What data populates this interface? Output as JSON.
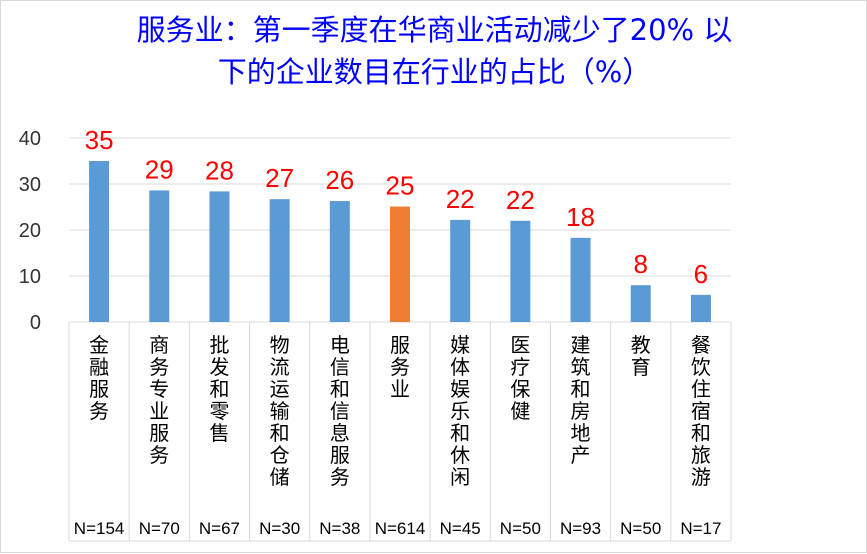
{
  "chart_data": {
    "type": "bar",
    "title_line1": "服务业：第一季度在华商业活动减少了20% 以",
    "title_line2": "下的企业数目在行业的占比（%）",
    "categories": [
      "金融服务",
      "商务专业服务",
      "批发和零售",
      "物流运输和仓储",
      "电信和信息服务",
      "服务业",
      "媒体娱乐和休闲",
      "医疗保健",
      "建筑和房地产",
      "教育",
      "餐饮住宿和旅游"
    ],
    "n_labels": [
      "N=154",
      "N=70",
      "N=67",
      "N=30",
      "N=38",
      "N=614",
      "N=45",
      "N=50",
      "N=93",
      "N=50",
      "N=17"
    ],
    "values": [
      35,
      28.6,
      28.4,
      26.7,
      26.3,
      25.1,
      22.2,
      22,
      18.3,
      8,
      5.9
    ],
    "data_labels": [
      "35",
      "29",
      "28",
      "27",
      "26",
      "25",
      "22",
      "22",
      "18",
      "8",
      "6"
    ],
    "y_ticks": [
      0,
      10,
      20,
      30,
      40
    ],
    "ylim": [
      0,
      40
    ],
    "grid": true,
    "highlight_index": 5,
    "colors": {
      "bar": "#5b9bd5",
      "highlight": "#ed7d31",
      "title": "#0000ff",
      "data_label": "#ff0000",
      "grid": "#d9d9d9"
    }
  }
}
